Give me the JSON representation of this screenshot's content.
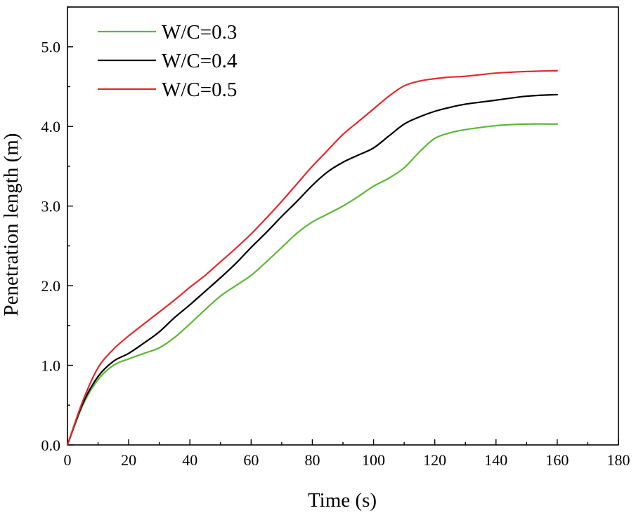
{
  "chart_data": {
    "type": "line",
    "title": "",
    "xlabel": "Time (s)",
    "ylabel": "Penetration length (m)",
    "xlim": [
      0,
      180
    ],
    "ylim": [
      0,
      5.5
    ],
    "xticks": [
      0,
      20,
      40,
      60,
      80,
      100,
      120,
      140,
      160,
      180
    ],
    "xtick_labels": [
      "0",
      "20",
      "40",
      "60",
      "80",
      "100",
      "120",
      "140",
      "160",
      "180"
    ],
    "yticks": [
      0,
      1,
      2,
      3,
      4,
      5
    ],
    "ytick_labels": [
      "0.0",
      "1.0",
      "2.0",
      "3.0",
      "4.0",
      "5.0"
    ],
    "grid": false,
    "legend_position": "top-left",
    "series": [
      {
        "name": "W/C=0.3",
        "color": "#5cb838",
        "x": [
          0,
          5,
          10,
          15,
          20,
          25,
          30,
          35,
          40,
          45,
          50,
          55,
          60,
          65,
          70,
          75,
          80,
          85,
          90,
          95,
          100,
          105,
          110,
          115,
          120,
          125,
          130,
          140,
          150,
          160
        ],
        "y": [
          0,
          0.5,
          0.82,
          1.0,
          1.08,
          1.15,
          1.22,
          1.35,
          1.52,
          1.7,
          1.87,
          2.0,
          2.13,
          2.3,
          2.48,
          2.66,
          2.8,
          2.9,
          3.0,
          3.12,
          3.25,
          3.35,
          3.48,
          3.68,
          3.85,
          3.92,
          3.96,
          4.01,
          4.03,
          4.03
        ]
      },
      {
        "name": "W/C=0.4",
        "color": "#000000",
        "x": [
          0,
          5,
          10,
          15,
          20,
          25,
          30,
          35,
          40,
          45,
          50,
          55,
          60,
          65,
          70,
          75,
          80,
          85,
          90,
          95,
          100,
          105,
          110,
          115,
          120,
          125,
          130,
          140,
          150,
          160
        ],
        "y": [
          0,
          0.52,
          0.86,
          1.05,
          1.15,
          1.28,
          1.42,
          1.6,
          1.76,
          1.93,
          2.1,
          2.28,
          2.48,
          2.67,
          2.87,
          3.06,
          3.26,
          3.43,
          3.55,
          3.64,
          3.73,
          3.88,
          4.03,
          4.12,
          4.19,
          4.24,
          4.28,
          4.33,
          4.38,
          4.4
        ]
      },
      {
        "name": "W/C=0.5",
        "color": "#e2292d",
        "x": [
          0,
          5,
          10,
          15,
          20,
          25,
          30,
          35,
          40,
          45,
          50,
          55,
          60,
          65,
          70,
          75,
          80,
          85,
          90,
          95,
          100,
          105,
          110,
          115,
          120,
          125,
          130,
          140,
          150,
          160
        ],
        "y": [
          0,
          0.55,
          0.97,
          1.2,
          1.37,
          1.52,
          1.67,
          1.82,
          1.98,
          2.13,
          2.3,
          2.47,
          2.65,
          2.85,
          3.06,
          3.28,
          3.5,
          3.7,
          3.9,
          4.06,
          4.22,
          4.38,
          4.51,
          4.57,
          4.6,
          4.62,
          4.63,
          4.67,
          4.69,
          4.7
        ]
      }
    ]
  }
}
